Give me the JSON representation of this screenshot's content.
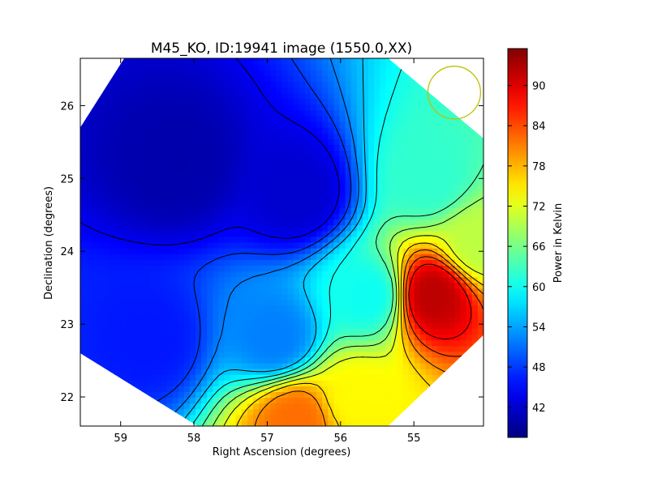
{
  "chart_data": {
    "type": "heatmap",
    "title": "M45_KO, ID:19941 image (1550.0,XX)",
    "xlabel": "Right Ascension (degrees)",
    "ylabel": "Declination (degrees)",
    "xlim": [
      59.55,
      54.05
    ],
    "ylim": [
      21.6,
      26.65
    ],
    "x_ticks": [
      59,
      58,
      57,
      56,
      55
    ],
    "x_tick_labels": [
      "59",
      "58",
      "57",
      "56",
      "55"
    ],
    "y_ticks": [
      22,
      23,
      24,
      25,
      26
    ],
    "y_tick_labels": [
      "22",
      "23",
      "24",
      "25",
      "26"
    ],
    "colorbar": {
      "label": "Power in Kelvin",
      "range": [
        37.5,
        95.5
      ],
      "ticks": [
        42,
        48,
        54,
        60,
        66,
        72,
        78,
        84,
        90
      ],
      "tick_labels": [
        "42",
        "48",
        "54",
        "60",
        "66",
        "72",
        "78",
        "84",
        "90"
      ],
      "colormap": "jet"
    },
    "contours": true,
    "contour_color": "#000000",
    "annotation": {
      "shape": "circle",
      "ra": 54.45,
      "dec": 26.18,
      "radius_deg": 0.36,
      "color": "#bfbf00"
    },
    "field_value_samples": [
      {
        "ra": 58.2,
        "dec": 25.2,
        "value": 40
      },
      {
        "ra": 56.6,
        "dec": 24.8,
        "value": 42
      },
      {
        "ra": 58.6,
        "dec": 22.8,
        "value": 46
      },
      {
        "ra": 56.9,
        "dec": 22.8,
        "value": 52
      },
      {
        "ra": 55.6,
        "dec": 23.4,
        "value": 60
      },
      {
        "ra": 54.8,
        "dec": 25.0,
        "value": 62
      },
      {
        "ra": 54.1,
        "dec": 24.1,
        "value": 70
      },
      {
        "ra": 55.8,
        "dec": 22.0,
        "value": 74
      },
      {
        "ra": 56.6,
        "dec": 21.7,
        "value": 82
      },
      {
        "ra": 54.75,
        "dec": 23.4,
        "value": 92
      }
    ]
  }
}
